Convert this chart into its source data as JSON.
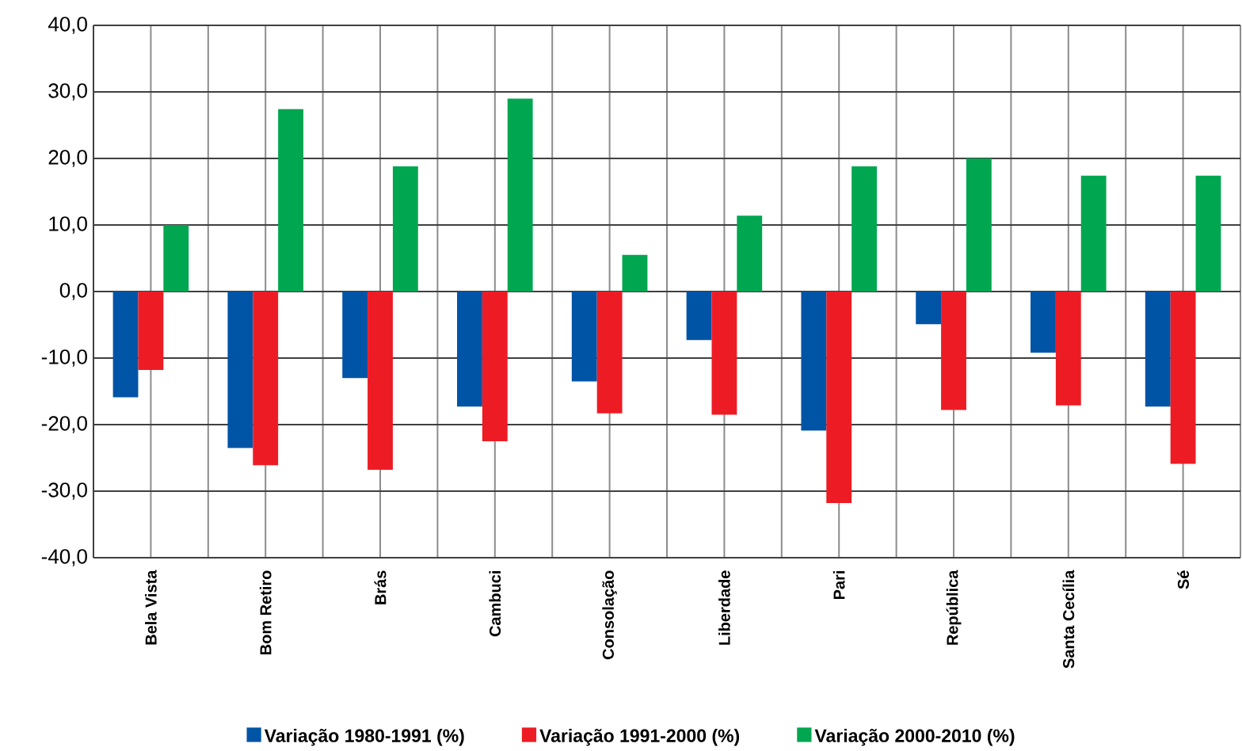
{
  "chart_data": {
    "type": "bar",
    "categories": [
      "Bela Vista",
      "Bom Retiro",
      "Brás",
      "Cambuci",
      "Consolação",
      "Liberdade",
      "Pari",
      "República",
      "Santa Cecília",
      "Sé"
    ],
    "series": [
      {
        "name": "Variação 1980-1991 (%)",
        "color": "#0054a6",
        "values": [
          -15.9,
          -23.5,
          -13.0,
          -17.3,
          -13.5,
          -7.3,
          -20.9,
          -4.9,
          -9.2,
          -17.3
        ]
      },
      {
        "name": "Variação 1991-2000 (%)",
        "color": "#ed1c24",
        "values": [
          -11.8,
          -26.1,
          -26.8,
          -22.5,
          -18.3,
          -18.5,
          -31.8,
          -17.8,
          -17.1,
          -25.9
        ]
      },
      {
        "name": "Variação 2000-2010 (%)",
        "color": "#00a650",
        "values": [
          10.0,
          27.4,
          18.8,
          29.0,
          5.5,
          11.4,
          18.8,
          20.0,
          17.4,
          17.4
        ]
      }
    ],
    "ylim": [
      -40,
      40
    ],
    "yticks": [
      {
        "value": -40,
        "label": "-40,0"
      },
      {
        "value": -30,
        "label": "-30,0"
      },
      {
        "value": -20,
        "label": "-20,0"
      },
      {
        "value": -10,
        "label": "-10,0"
      },
      {
        "value": 0,
        "label": "0,0"
      },
      {
        "value": 10,
        "label": "10,0"
      },
      {
        "value": 20,
        "label": "20,0"
      },
      {
        "value": 30,
        "label": "30,0"
      },
      {
        "value": 40,
        "label": "40,0"
      }
    ],
    "grid": true,
    "legend": "bottom"
  }
}
